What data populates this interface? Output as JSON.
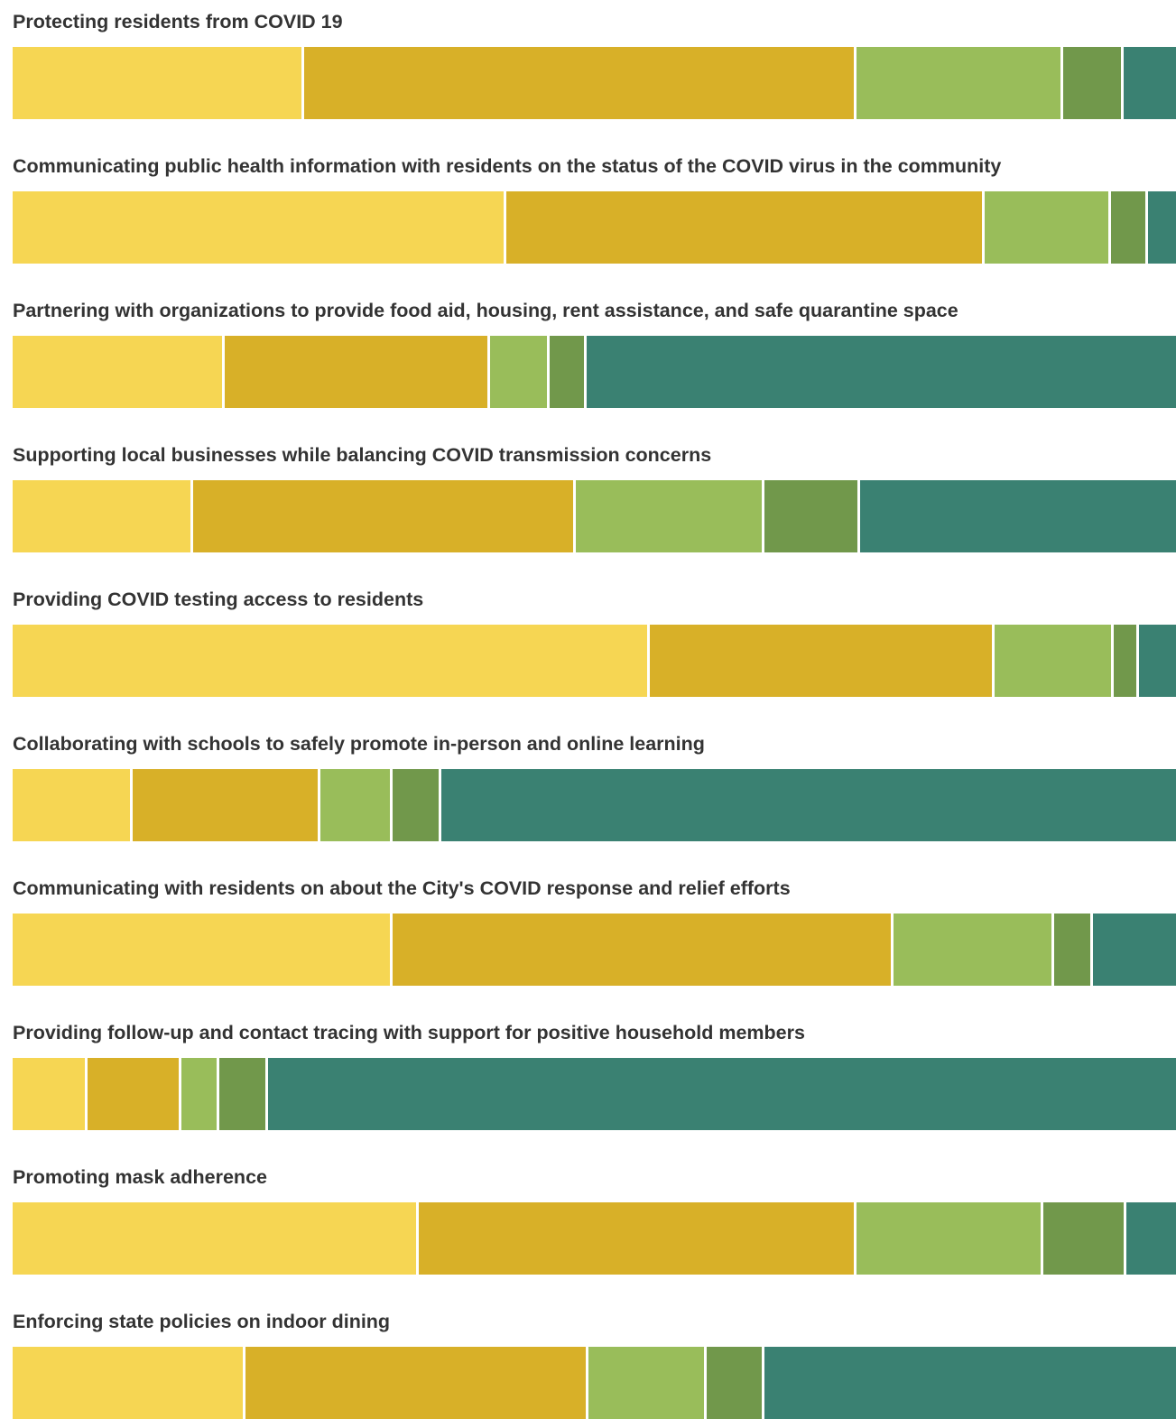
{
  "colors": {
    "segment_1": "#f6d653",
    "segment_2": "#d8b028",
    "segment_3": "#99bd5a",
    "segment_4": "#71984b",
    "segment_5": "#3a8172",
    "label_text": "#333333",
    "background": "#ffffff"
  },
  "chart_data": {
    "type": "bar",
    "orientation": "horizontal",
    "stacked": true,
    "normalized_to_percent": true,
    "xlim": [
      0,
      100
    ],
    "grid": false,
    "legend": "none",
    "categories": [
      "Protecting residents from COVID 19",
      "Communicating public health information with residents on the status of the COVID virus in the community",
      "Partnering with organizations to provide food aid, housing, rent assistance, and safe quarantine space",
      "Supporting local businesses while balancing COVID transmission concerns",
      "Providing COVID testing access to residents",
      "Collaborating with schools to safely promote in-person and online learning",
      "Communicating with residents on about the City's COVID response and relief efforts",
      "Providing follow-up and contact tracing with support for positive household members",
      "Promoting mask adherence",
      "Enforcing state policies on indoor dining"
    ],
    "series": [
      {
        "color": "#f6d653",
        "values": [
          24.8,
          42.2,
          18.0,
          15.3,
          54.5,
          10.1,
          32.4,
          6.2,
          34.7,
          19.8
        ]
      },
      {
        "color": "#d8b028",
        "values": [
          47.5,
          41.1,
          22.8,
          32.9,
          29.7,
          16.1,
          43.1,
          8.1,
          37.6,
          29.5
        ]
      },
      {
        "color": "#99bd5a",
        "values": [
          17.8,
          10.9,
          5.1,
          16.2,
          10.2,
          6.2,
          13.8,
          3.2,
          16.1,
          10.1
        ]
      },
      {
        "color": "#71984b",
        "values": [
          5.2,
          3.2,
          3.2,
          8.2,
          2.2,
          4.2,
          3.3,
          4.2,
          7.1,
          5.0
        ]
      },
      {
        "color": "#3a8172",
        "values": [
          4.7,
          2.6,
          50.9,
          27.4,
          3.4,
          63.4,
          7.4,
          78.3,
          4.5,
          35.6
        ]
      }
    ]
  }
}
